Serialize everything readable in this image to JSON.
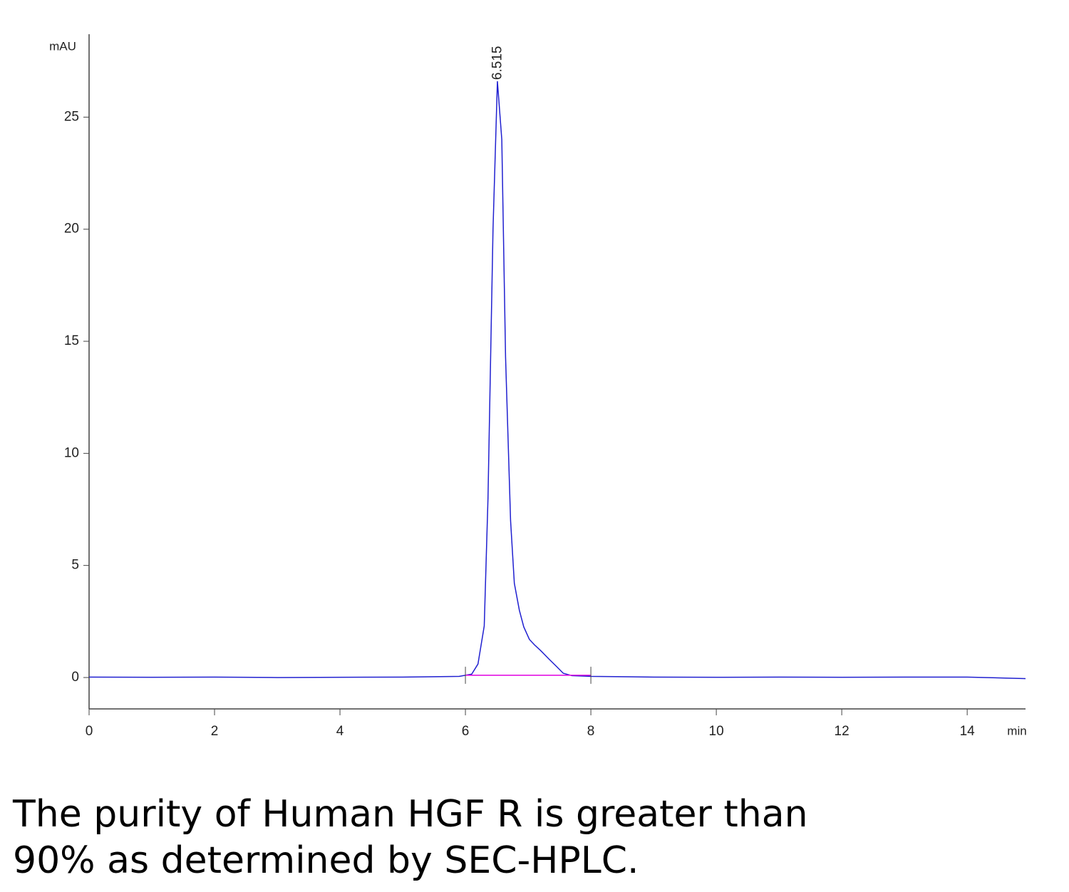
{
  "chart_data": {
    "type": "line",
    "y_label": "mAU",
    "x_label": "min",
    "x": [
      0,
      1,
      2,
      3,
      4,
      5,
      5.9,
      6.1,
      6.2,
      6.3,
      6.36,
      6.44,
      6.51,
      6.58,
      6.64,
      6.72,
      6.78,
      6.86,
      6.93,
      7.02,
      7.1,
      7.2,
      7.33,
      7.45,
      7.56,
      7.7,
      8,
      9,
      10,
      11,
      12,
      13,
      14,
      14.93
    ],
    "series": [
      {
        "color": "#2020d0",
        "values": [
          0.02,
          0.01,
          0.02,
          0,
          0.01,
          0.02,
          0.05,
          0.15,
          0.6,
          2.3,
          8,
          20,
          26.6,
          24,
          14.3,
          7,
          4.2,
          3,
          2.26,
          1.7,
          1.46,
          1.2,
          0.83,
          0.5,
          0.19,
          0.08,
          0.05,
          0.02,
          0.01,
          0.02,
          0.01,
          0.02,
          0.02,
          -0.05
        ]
      }
    ],
    "baseline": {
      "color": "#e000e0",
      "x": [
        6.0,
        8.0
      ],
      "values": [
        0.1,
        0.1
      ]
    },
    "peak_label": {
      "text": "6.515",
      "x": 6.515,
      "y": 26.6
    },
    "xlim": [
      0,
      14.93
    ],
    "ylim": [
      -1.4,
      28.7
    ],
    "xticks": [
      0,
      2,
      4,
      6,
      8,
      10,
      12,
      14
    ],
    "yticks": [
      0,
      5,
      10,
      15,
      20,
      25
    ]
  },
  "caption": [
    "The purity of Human HGF R is greater than",
    "90% as determined by SEC-HPLC."
  ]
}
